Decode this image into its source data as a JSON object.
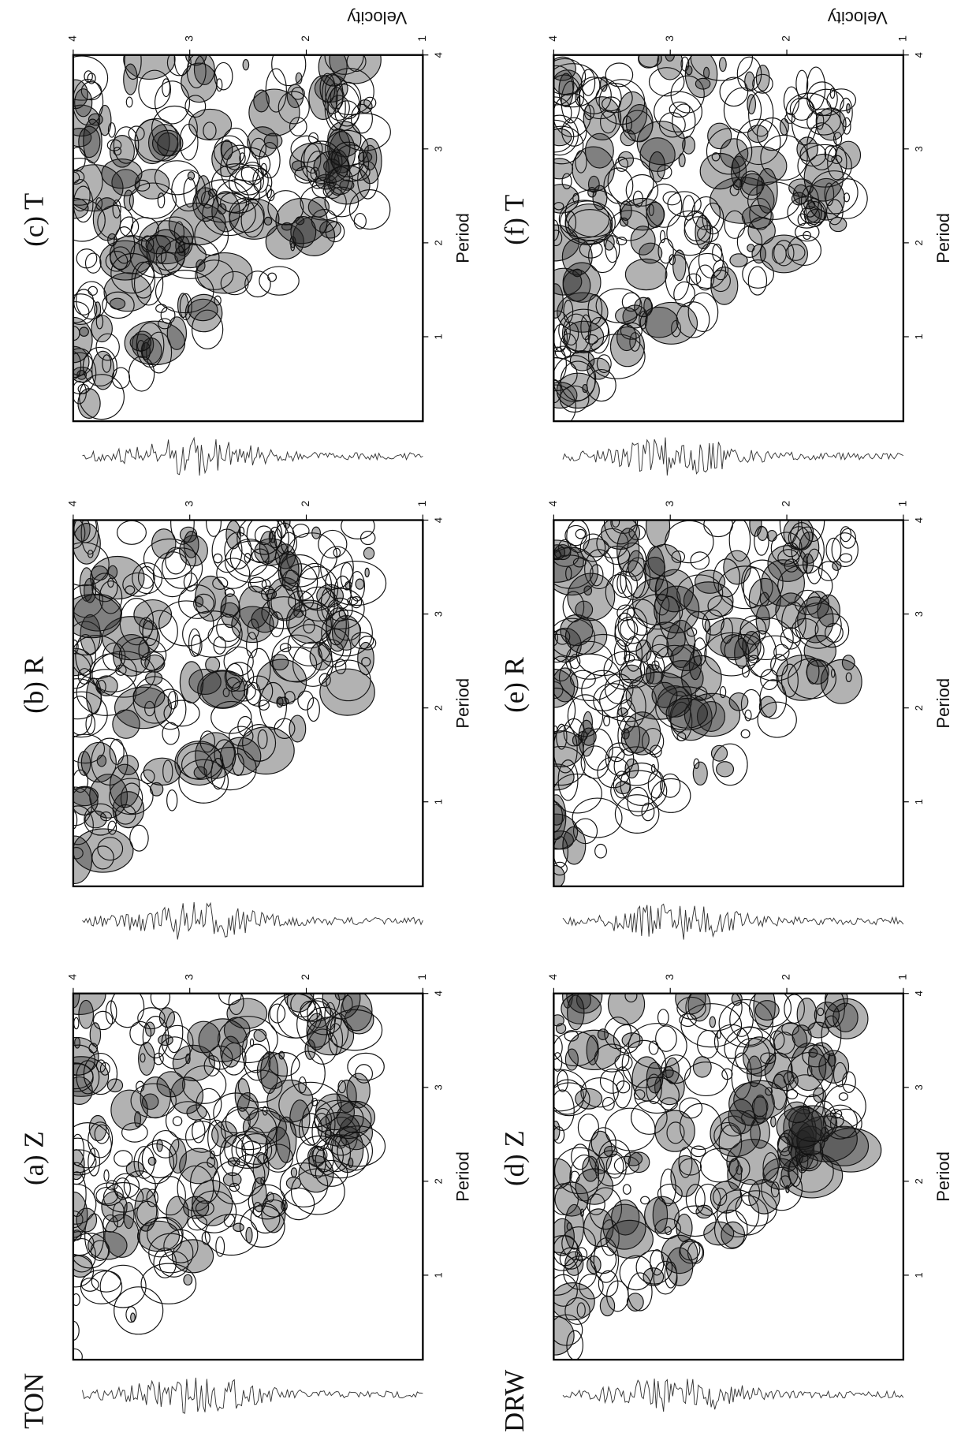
{
  "stations": [
    "TON",
    "DRW"
  ],
  "chart_data": [
    {
      "type": "contour",
      "title": "(a) Z",
      "xlabel": "Period",
      "xlim": [
        0.1,
        4
      ],
      "xticks": [
        1,
        2,
        3,
        4
      ],
      "ylim": [
        1,
        4
      ],
      "yticks": [
        1,
        2,
        3,
        4
      ]
    },
    {
      "type": "contour",
      "title": "(b) R",
      "xlabel": "Period",
      "xlim": [
        0.1,
        4
      ],
      "xticks": [
        1,
        2,
        3,
        4
      ],
      "ylim": [
        1,
        4
      ],
      "yticks": [
        1,
        2,
        3,
        4
      ]
    },
    {
      "type": "contour",
      "title": "(c) T",
      "xlabel": "Period",
      "ylabel": "Velocity",
      "xlim": [
        0.1,
        4
      ],
      "xticks": [
        1,
        2,
        3,
        4
      ],
      "ylim": [
        1,
        4
      ],
      "yticks": [
        1,
        2,
        3,
        4
      ]
    },
    {
      "type": "contour",
      "title": "(d) Z",
      "xlabel": "Period",
      "xlim": [
        0.1,
        4
      ],
      "xticks": [
        1,
        2,
        3,
        4
      ],
      "ylim": [
        1,
        4
      ],
      "yticks": [
        1,
        2,
        3,
        4
      ]
    },
    {
      "type": "contour",
      "title": "(e) R",
      "xlabel": "Period",
      "xlim": [
        0.1,
        4
      ],
      "xticks": [
        1,
        2,
        3,
        4
      ],
      "ylim": [
        1,
        4
      ],
      "yticks": [
        1,
        2,
        3,
        4
      ]
    },
    {
      "type": "contour",
      "title": "(f) T",
      "xlabel": "Period",
      "ylabel": "Velocity",
      "xlim": [
        0.1,
        4
      ],
      "xticks": [
        1,
        2,
        3,
        4
      ],
      "ylim": [
        1,
        4
      ],
      "yticks": [
        1,
        2,
        3,
        4
      ]
    }
  ]
}
